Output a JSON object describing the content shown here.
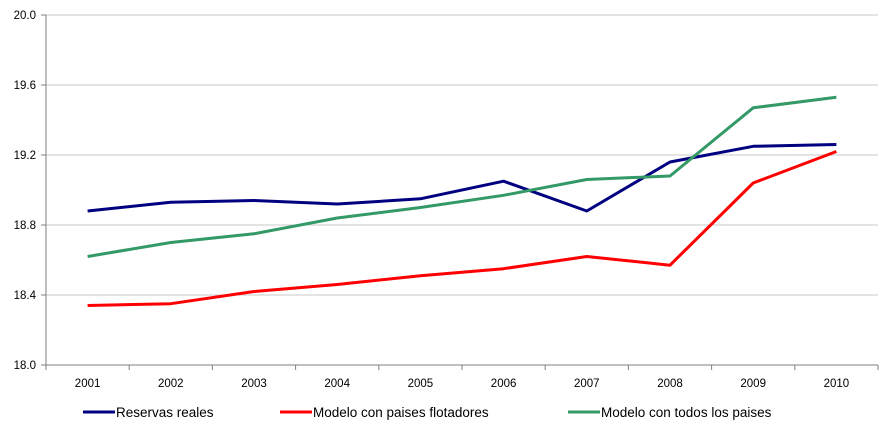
{
  "chart_data": {
    "type": "line",
    "categories": [
      "2001",
      "2002",
      "2003",
      "2004",
      "2005",
      "2006",
      "2007",
      "2008",
      "2009",
      "2010"
    ],
    "ylim": [
      18.0,
      20.0
    ],
    "yticks": [
      "18.0",
      "18.4",
      "18.8",
      "19.2",
      "19.6",
      "20.0"
    ],
    "grid": true,
    "legend_position": "bottom",
    "series": [
      {
        "name": "Reservas reales",
        "color": "#000080",
        "values": [
          18.88,
          18.93,
          18.94,
          18.92,
          18.95,
          19.05,
          18.88,
          19.16,
          19.25,
          19.26
        ]
      },
      {
        "name": "Modelo con paises flotadores",
        "color": "#ff0000",
        "values": [
          18.34,
          18.35,
          18.42,
          18.46,
          18.51,
          18.55,
          18.62,
          18.57,
          19.04,
          19.22
        ]
      },
      {
        "name": "Modelo con todos los paises",
        "color": "#339966",
        "values": [
          18.62,
          18.7,
          18.75,
          18.84,
          18.9,
          18.97,
          19.06,
          19.08,
          19.47,
          19.53
        ]
      }
    ]
  }
}
